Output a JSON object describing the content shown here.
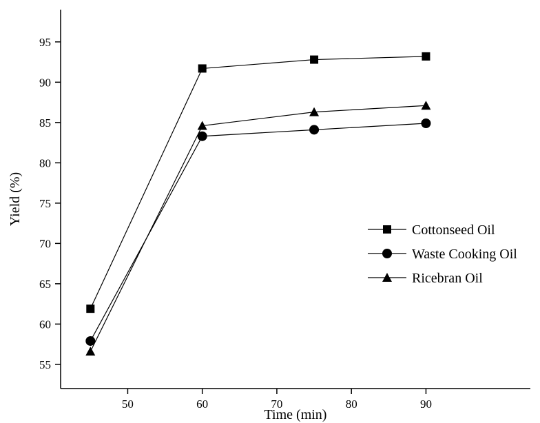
{
  "chart_data": {
    "type": "line",
    "title": "",
    "xlabel": "Time (min)",
    "ylabel": "Yield (%)",
    "xlim": [
      41,
      104
    ],
    "ylim": [
      52,
      99
    ],
    "xticks": [
      50,
      60,
      70,
      80,
      90
    ],
    "yticks": [
      55,
      60,
      65,
      70,
      75,
      80,
      85,
      90,
      95
    ],
    "x": [
      45,
      60,
      75,
      90
    ],
    "series": [
      {
        "name": "Cottonseed Oil",
        "marker": "square",
        "values": [
          61.9,
          91.7,
          92.8,
          93.2
        ]
      },
      {
        "name": "Waste Cooking Oil",
        "marker": "circle",
        "values": [
          57.9,
          83.3,
          84.1,
          84.9
        ]
      },
      {
        "name": "Ricebran Oil",
        "marker": "triangle",
        "values": [
          56.6,
          84.6,
          86.3,
          87.1
        ]
      }
    ],
    "legend": {
      "position": "right"
    },
    "grid": false,
    "colors": {
      "line": "#000000",
      "marker": "#000000",
      "background": "#ffffff"
    }
  }
}
